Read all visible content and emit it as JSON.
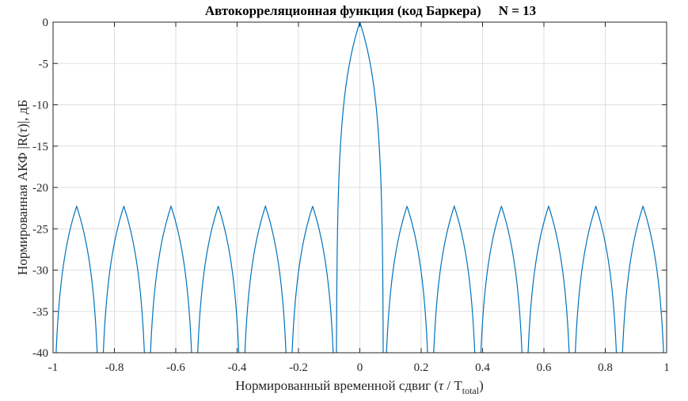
{
  "chart_data": {
    "type": "line",
    "title": "Автокорреляционная функция (код Баркера)",
    "title_n": "N = 13",
    "xlabel": {
      "prefix": "Нормированный временной сдвиг (",
      "tau": "τ",
      "sep": " / T",
      "sub": "total",
      "suffix": ")"
    },
    "ylabel": {
      "prefix": "Нормированная АКФ |R(",
      "tau": "τ",
      "suffix": ")|, дБ"
    },
    "xlim": [
      -1,
      1
    ],
    "ylim": [
      -40,
      0
    ],
    "xticks": [
      -1,
      -0.8,
      -0.6,
      -0.4,
      -0.2,
      0,
      0.2,
      0.4,
      0.6,
      0.8,
      1
    ],
    "xtick_labels": [
      "-1",
      "-0.8",
      "-0.6",
      "-0.4",
      "-0.2",
      "0",
      "0.2",
      "0.4",
      "0.6",
      "0.8",
      "1"
    ],
    "yticks": [
      0,
      -5,
      -10,
      -15,
      -20,
      -25,
      -30,
      -35,
      -40
    ],
    "ytick_labels": [
      "0",
      "-5",
      "-10",
      "-15",
      "-20",
      "-25",
      "-30",
      "-35",
      "-40"
    ],
    "grid": true,
    "line_color": "#0072BD",
    "series": [
      {
        "code_length": 13,
        "mainlobe_peak_db": 0,
        "sidelobe_peak_db": -22.3,
        "description_points": [
          [
            -1,
            -40
          ],
          [
            -0.923,
            -22.3
          ],
          [
            -0.846,
            -40
          ],
          [
            -0.769,
            -22.3
          ],
          [
            -0.692,
            -40
          ],
          [
            -0.615,
            -22.3
          ],
          [
            -0.538,
            -40
          ],
          [
            -0.462,
            -22.3
          ],
          [
            -0.385,
            -40
          ],
          [
            -0.308,
            -22.3
          ],
          [
            -0.231,
            -40
          ],
          [
            -0.154,
            -22.3
          ],
          [
            -0.077,
            -40
          ],
          [
            0,
            0
          ],
          [
            0.077,
            -40
          ],
          [
            0.154,
            -22.3
          ],
          [
            0.231,
            -40
          ],
          [
            0.308,
            -22.3
          ],
          [
            0.385,
            -40
          ],
          [
            0.462,
            -22.3
          ],
          [
            0.538,
            -40
          ],
          [
            0.615,
            -22.3
          ],
          [
            0.692,
            -40
          ],
          [
            0.769,
            -22.3
          ],
          [
            0.846,
            -40
          ],
          [
            0.923,
            -22.3
          ],
          [
            1,
            -40
          ]
        ]
      }
    ]
  }
}
